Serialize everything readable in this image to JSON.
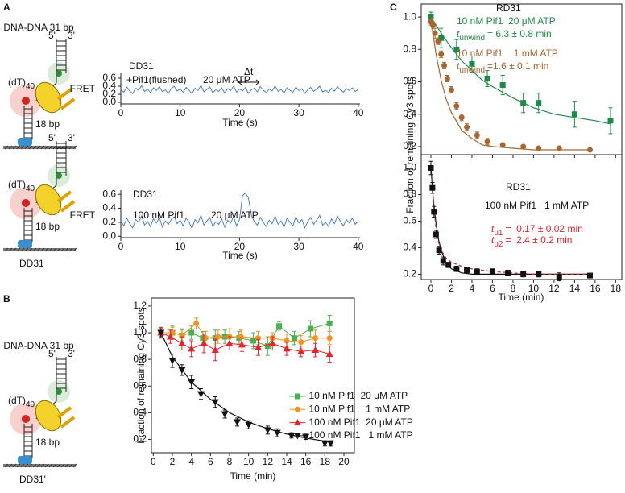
{
  "panel_labels": [
    "A",
    "B",
    "C"
  ],
  "diagrams": [
    {
      "title": "DNA-DNA 31 bp",
      "five": "5'",
      "three": "3'",
      "tail": "(dT)",
      "tail_n": "40",
      "duplex": "18 bp"
    },
    {
      "five": "5'",
      "three": "3'",
      "tail": "(dT)",
      "tail_n": "40",
      "duplex": "18 bp",
      "name": "DD31"
    },
    {
      "title": "DNA-DNA 31 bp",
      "five": "5'",
      "three": "3'",
      "tail": "(dT)",
      "tail_n": "40",
      "duplex": "18 bp",
      "name": "DD31'"
    }
  ],
  "chart_data": [
    {
      "type": "line",
      "annotations": [
        {
          "text": "DD31"
        },
        {
          "text": "+Pif1(flushed)"
        },
        {
          "text": "20 μM ATP"
        },
        {
          "text": "Δt"
        }
      ],
      "xlabel": "Time (s)",
      "ylabel": "FRET",
      "color": "#3d74c2",
      "xlim": [
        0,
        40.3
      ],
      "xticks": [
        0,
        10,
        20,
        30,
        40
      ],
      "ylim": [
        -0.04,
        0.74
      ],
      "yticks": [
        {
          "value": 0,
          "label": "0.0"
        },
        0.2,
        0.4,
        0.6
      ],
      "x": [
        0,
        0.5,
        1,
        1.5,
        2,
        2.5,
        3,
        3.5,
        4,
        4.5,
        5,
        5.5,
        6,
        6.5,
        7,
        7.5,
        8,
        8.5,
        9,
        9.5,
        10,
        10.5,
        11,
        11.5,
        12,
        12.5,
        13,
        13.5,
        14,
        14.5,
        15,
        15.5,
        16,
        16.5,
        17,
        17.5,
        18,
        18.5,
        19,
        19.5,
        20,
        20.5,
        21,
        21.5,
        22,
        22.5,
        23,
        23.5,
        24,
        24.5,
        25,
        25.5,
        26,
        26.5,
        27,
        27.5,
        28,
        28.5,
        29,
        29.5,
        30,
        30.5,
        31,
        31.5,
        32,
        32.5,
        33,
        33.5,
        34,
        34.5,
        35,
        35.5,
        36,
        36.5,
        37,
        37.5,
        38,
        38.5,
        39,
        39.5,
        40
      ],
      "values": [
        0.32,
        0.25,
        0.38,
        0.28,
        0.22,
        0.35,
        0.3,
        0.41,
        0.27,
        0.33,
        0.24,
        0.36,
        0.29,
        0.39,
        0.26,
        0.31,
        0.22,
        0.34,
        0.4,
        0.28,
        0.33,
        0.25,
        0.37,
        0.3,
        0.21,
        0.35,
        0.29,
        0.42,
        0.26,
        0.32,
        0.38,
        0.24,
        0.31,
        0.27,
        0.36,
        0.23,
        0.34,
        0.29,
        0.4,
        0.25,
        0.33,
        0.28,
        0.37,
        0.22,
        0.31,
        0.35,
        0.26,
        0.39,
        0.3,
        0.24,
        0.33,
        0.28,
        0.41,
        0.27,
        0.32,
        0.23,
        0.36,
        0.3,
        0.25,
        0.38,
        0.29,
        0.34,
        0.22,
        0.31,
        0.37,
        0.27,
        0.33,
        0.4,
        0.26,
        0.3,
        0.24,
        0.35,
        0.28,
        0.39,
        0.31,
        0.25,
        0.34,
        0.29,
        0.36,
        0.27,
        0.32
      ]
    },
    {
      "type": "line",
      "annotations": [
        {
          "text": "DD31"
        },
        {
          "text": "100 nM Pif1"
        },
        {
          "text": "20 μM ATP"
        }
      ],
      "xlabel": "Time (s)",
      "ylabel": "FRET",
      "color": "#3d74c2",
      "xlim": [
        0,
        40.3
      ],
      "xticks": [
        0,
        10,
        20,
        30,
        40
      ],
      "ylim": [
        -0.02,
        0.66
      ],
      "yticks": [
        {
          "value": 0,
          "label": "0.0"
        },
        0.2,
        0.4,
        0.6
      ],
      "x": [
        0,
        0.5,
        1,
        1.5,
        2,
        2.5,
        3,
        3.5,
        4,
        4.5,
        5,
        5.5,
        6,
        6.5,
        7,
        7.5,
        8,
        8.5,
        9,
        9.5,
        10,
        10.5,
        11,
        11.5,
        12,
        12.5,
        13,
        13.5,
        14,
        14.5,
        15,
        15.5,
        16,
        16.5,
        17,
        17.5,
        18,
        18.5,
        19,
        19.5,
        20,
        20.5,
        21,
        21.5,
        22,
        22.5,
        23,
        23.5,
        24,
        24.5,
        25,
        25.5,
        26,
        26.5,
        27,
        27.5,
        28,
        28.5,
        29,
        29.5,
        30,
        30.5,
        31,
        31.5,
        32,
        32.5,
        33,
        33.5,
        34,
        34.5,
        35,
        35.5,
        36,
        36.5,
        37,
        37.5,
        38,
        38.5,
        39,
        39.5,
        40
      ],
      "values": [
        0.22,
        0.15,
        0.26,
        0.18,
        0.12,
        0.24,
        0.2,
        0.29,
        0.16,
        0.21,
        0.14,
        0.25,
        0.19,
        0.27,
        0.13,
        0.22,
        0.17,
        0.24,
        0.28,
        0.18,
        0.23,
        0.15,
        0.26,
        0.2,
        0.11,
        0.24,
        0.19,
        0.3,
        0.16,
        0.22,
        0.27,
        0.14,
        0.21,
        0.17,
        0.25,
        0.13,
        0.23,
        0.19,
        0.28,
        0.15,
        0.24,
        0.58,
        0.62,
        0.55,
        0.3,
        0.21,
        0.16,
        0.27,
        0.2,
        0.14,
        0.23,
        0.18,
        0.29,
        0.17,
        0.22,
        0.13,
        0.26,
        0.2,
        0.15,
        0.28,
        0.19,
        0.24,
        0.12,
        0.21,
        0.27,
        0.17,
        0.23,
        0.3,
        0.16,
        0.2,
        0.14,
        0.25,
        0.18,
        0.29,
        0.21,
        0.15,
        0.24,
        0.19,
        0.26,
        0.17,
        0.22
      ]
    },
    {
      "type": "scatter",
      "xlabel": "Time (min)",
      "ylabel": "Fraction of remaining Cy3 spots",
      "legend": "lower right",
      "xlim": [
        -0.2,
        21.1
      ],
      "xticks": [
        0,
        2,
        4,
        6,
        8,
        10,
        12,
        14,
        16,
        18,
        20
      ],
      "ylim": [
        0.1,
        1.26
      ],
      "yticks": [
        0.2,
        0.4,
        0.6,
        0.8,
        {
          "value": 1,
          "label": "1.0"
        },
        1.2
      ],
      "series": [
        {
          "name": "10 nM Pif1  20 μM ATP",
          "color": "#4cb050",
          "marker": "square",
          "connect": true,
          "x": [
            0.8,
            2,
            3,
            4,
            5.2,
            6.5,
            7.5,
            9,
            10.5,
            12,
            13.2,
            14.8,
            16.5,
            18.5
          ],
          "values": [
            1.0,
            1.0,
            0.98,
            1.0,
            0.96,
            0.96,
            0.97,
            0.96,
            0.94,
            0.9,
            1.05,
            0.96,
            1.03,
            1.07
          ],
          "errors": [
            0.04,
            0.05,
            0.04,
            0.05,
            0.05,
            0.06,
            0.05,
            0.05,
            0.06,
            0.07,
            0.03,
            0.05,
            0.06,
            0.06
          ]
        },
        {
          "name": "10 nM Pif1    1 mM ATP",
          "color": "#f5921e",
          "marker": "circle",
          "connect": true,
          "x": [
            0.8,
            2,
            3,
            4.5,
            5.5,
            6.8,
            8,
            9.2,
            11,
            12.5,
            14,
            15.5,
            17,
            18.5
          ],
          "values": [
            1.0,
            1.0,
            0.98,
            1.07,
            0.96,
            0.97,
            0.97,
            0.97,
            0.96,
            0.96,
            0.94,
            0.93,
            0.96,
            0.96
          ],
          "errors": [
            0.04,
            0.04,
            0.05,
            0.04,
            0.05,
            0.05,
            0.06,
            0.05,
            0.05,
            0.04,
            0.05,
            0.05,
            0.06,
            0.05
          ]
        },
        {
          "name": "100 nM Pif1  20 μM ATP",
          "color": "#e8202a",
          "marker": "triangle-up",
          "connect": true,
          "x": [
            0.8,
            1.8,
            3,
            4,
            5.3,
            6.5,
            8,
            9.3,
            11,
            12.5,
            14,
            15.5,
            17,
            18.5
          ],
          "values": [
            1.0,
            0.97,
            0.92,
            0.88,
            0.92,
            0.87,
            0.92,
            0.91,
            0.89,
            0.92,
            0.88,
            0.86,
            0.87,
            0.84
          ],
          "errors": [
            0.04,
            0.05,
            0.05,
            0.06,
            0.07,
            0.08,
            0.05,
            0.05,
            0.06,
            0.05,
            0.05,
            0.04,
            0.05,
            0.06
          ]
        },
        {
          "name": "100 nM Pif1   1 mM ATP",
          "color": "#111111",
          "marker": "triangle-down",
          "x": [
            0.8,
            2,
            3,
            4,
            5,
            6.5,
            7.5,
            8.8,
            10,
            12,
            13,
            14.5,
            16,
            18,
            18.6
          ],
          "values": [
            1.0,
            0.79,
            0.72,
            0.63,
            0.54,
            0.48,
            0.39,
            0.33,
            0.31,
            0.27,
            0.25,
            0.23,
            0.22,
            0.17,
            0.17
          ],
          "errors": [
            0.03,
            0.05,
            0.04,
            0.05,
            0.04,
            0.04,
            0.03,
            0.03,
            0.03,
            0.03,
            0.03,
            0.02,
            0.02,
            0.02,
            0.02
          ]
        }
      ],
      "fits": [
        {
          "color": "#111111",
          "x": [
            0.8,
            2,
            4,
            6,
            8,
            10,
            12,
            14,
            16,
            18.6
          ],
          "values": [
            1.0,
            0.82,
            0.63,
            0.5,
            0.4,
            0.33,
            0.28,
            0.24,
            0.21,
            0.18
          ]
        }
      ]
    },
    {
      "type": "scatter",
      "xtick_labels": false,
      "annotations": [
        {
          "text": "RD31"
        },
        {
          "text": "10 nM Pif1  20 μM ATP",
          "color": "#1e8a48"
        },
        {
          "italic": "t",
          "sub": "unwind",
          "text": "= 6.3 ± 0.8 min",
          "color": "#1e8a48"
        },
        {
          "text": "10 nM Pif1    1 mM ATP",
          "color": "#a8652f"
        },
        {
          "italic": "t",
          "sub": "unwind",
          "text": "=1.6 ± 0.1 min",
          "color": "#a8652f"
        }
      ],
      "xlim": [
        -0.94,
        18.6
      ],
      "xticks": [
        0,
        2,
        4,
        6,
        8,
        10,
        12,
        14,
        16,
        18
      ],
      "ylim": [
        0.15,
        1.08
      ],
      "yticks": [
        0.2,
        0.4,
        0.6,
        0.8,
        {
          "value": 1,
          "label": "1.0"
        }
      ],
      "series": [
        {
          "color": "#1e8a48",
          "marker": "square",
          "x": [
            0,
            1,
            2.5,
            4,
            5.5,
            7,
            9,
            10.5,
            14,
            17.5
          ],
          "values": [
            1.0,
            0.87,
            0.8,
            0.71,
            0.62,
            0.58,
            0.47,
            0.47,
            0.4,
            0.36
          ],
          "errors": [
            0.03,
            0.06,
            0.06,
            0.05,
            0.05,
            0.06,
            0.06,
            0.06,
            0.08,
            0.08
          ]
        },
        {
          "color": "#a8652f",
          "marker": "circle",
          "x": [
            0,
            0.2,
            0.4,
            0.7,
            1,
            1.3,
            1.6,
            2,
            2.5,
            3,
            3.5,
            4.5,
            5.5,
            7,
            9,
            10.5,
            12.5,
            15.5
          ],
          "values": [
            0.97,
            0.95,
            0.9,
            0.85,
            0.77,
            0.7,
            0.62,
            0.55,
            0.45,
            0.38,
            0.32,
            0.27,
            0.23,
            0.21,
            0.2,
            0.19,
            0.19,
            0.18
          ],
          "errors": [
            0.02,
            0.02,
            0.03,
            0.02,
            0.02,
            0.02,
            0.02,
            0.02,
            0.02,
            0.02,
            0.02,
            0.02,
            0.02,
            0.01,
            0.01,
            0.01,
            0.01,
            0.01
          ]
        }
      ],
      "fits": [
        {
          "color": "#1e8a48",
          "x": [
            0,
            1,
            2,
            3,
            4,
            5,
            6,
            8,
            10,
            12,
            14,
            16,
            17.5
          ],
          "values": [
            1.0,
            0.9,
            0.81,
            0.73,
            0.67,
            0.61,
            0.57,
            0.5,
            0.44,
            0.4,
            0.38,
            0.36,
            0.34
          ]
        },
        {
          "color": "#a8652f",
          "x": [
            0,
            0.5,
            1,
            1.5,
            2,
            3,
            4,
            5,
            6,
            8,
            10,
            12,
            15.5
          ],
          "values": [
            0.98,
            0.77,
            0.61,
            0.49,
            0.41,
            0.3,
            0.25,
            0.21,
            0.2,
            0.19,
            0.18,
            0.18,
            0.18
          ]
        }
      ]
    },
    {
      "type": "scatter",
      "xlabel": "Time (min)",
      "ylabel": "Fraction of remaining Cy3 spots",
      "annotations": [
        {
          "text": "RD31"
        },
        {
          "text": "100 nM Pif1   1 mM ATP"
        },
        {
          "italic": "t",
          "sub": "u1",
          "text": "=  0.17 ± 0.02 min",
          "color": "#d7262b"
        },
        {
          "italic": "t",
          "sub": "u2",
          "text": "=  2.4 ± 0.2 min",
          "color": "#d7262b"
        }
      ],
      "xlim": [
        -0.94,
        18.6
      ],
      "xticks": [
        0,
        2,
        4,
        6,
        8,
        10,
        12,
        14,
        16,
        18
      ],
      "ylim": [
        0.16,
        1.1
      ],
      "yticks": [
        0.2,
        0.4,
        0.6,
        0.8,
        {
          "value": 1,
          "label": "1.0"
        }
      ],
      "series": [
        {
          "color": "#111111",
          "marker": "square",
          "x": [
            0,
            0.15,
            0.3,
            0.5,
            0.8,
            1.2,
            1.7,
            2.5,
            3.5,
            4.5,
            6,
            7.5,
            9,
            10.5,
            12.5,
            15.5
          ],
          "values": [
            1.0,
            0.85,
            0.67,
            0.5,
            0.38,
            0.3,
            0.27,
            0.24,
            0.23,
            0.22,
            0.22,
            0.21,
            0.2,
            0.2,
            0.18,
            0.19
          ],
          "errors": [
            0.05,
            0.04,
            0.04,
            0.03,
            0.03,
            0.03,
            0.02,
            0.02,
            0.02,
            0.02,
            0.02,
            0.02,
            0.02,
            0.02,
            0.03,
            0.01
          ]
        }
      ],
      "fits": [
        {
          "color": "#111111",
          "x": [
            0,
            0.25,
            0.5,
            0.75,
            1,
            1.5,
            2,
            3,
            4,
            6,
            8,
            10,
            15.5
          ],
          "values": [
            1.0,
            0.75,
            0.58,
            0.46,
            0.38,
            0.28,
            0.24,
            0.21,
            0.2,
            0.2,
            0.2,
            0.2,
            0.2
          ]
        },
        {
          "color": "#c0282d",
          "dash": true,
          "x": [
            0,
            0.25,
            0.5,
            0.75,
            1,
            1.5,
            2,
            3,
            4,
            6,
            8,
            10,
            15.5
          ],
          "values": [
            1.0,
            0.73,
            0.54,
            0.44,
            0.38,
            0.32,
            0.29,
            0.26,
            0.24,
            0.22,
            0.21,
            0.2,
            0.2
          ]
        }
      ]
    }
  ]
}
